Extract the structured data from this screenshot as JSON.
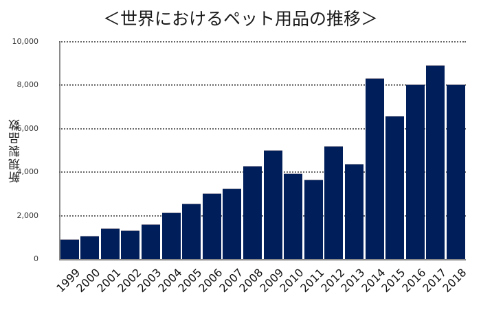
{
  "chart_data": {
    "type": "bar",
    "title": "＜世界におけるペット用品の推移＞",
    "xlabel": "",
    "ylabel": "新規製品数",
    "categories": [
      "1999",
      "2000",
      "2001",
      "2002",
      "2003",
      "2004",
      "2005",
      "2006",
      "2007",
      "2008",
      "2009",
      "2010",
      "2011",
      "2012",
      "2013",
      "2014",
      "2015",
      "2016",
      "2017",
      "2018"
    ],
    "values": [
      870,
      1030,
      1400,
      1300,
      1580,
      2100,
      2510,
      3010,
      3220,
      4260,
      4990,
      3910,
      3630,
      5160,
      4360,
      8310,
      6550,
      8000,
      8900,
      8000
    ],
    "ylim": [
      0,
      10000
    ],
    "yticks": [
      "0",
      "2,000",
      "4,000",
      "6,000",
      "8,000",
      "10,000"
    ],
    "ytick_values": [
      0,
      2000,
      4000,
      6000,
      8000,
      10000
    ],
    "grid": true,
    "legend": null,
    "bar_color": "#001e5a"
  }
}
